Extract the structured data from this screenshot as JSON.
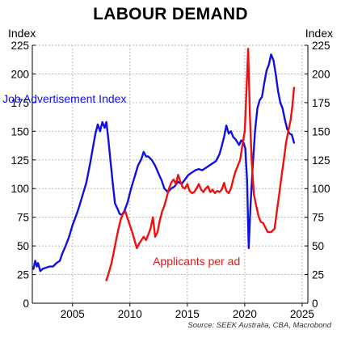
{
  "title": "LABOUR DEMAND",
  "y_unit_left": "Index",
  "y_unit_right": "Index",
  "source": "Source: SEEK Australia, CBA, Macrobond",
  "colors": {
    "job_index": "#1010e0",
    "applicants": "#ee1111",
    "grid": "#b8b8b8"
  },
  "chart_data": {
    "type": "line",
    "title": "LABOUR DEMAND",
    "ylabel": "Index",
    "ylim": [
      0,
      225
    ],
    "y_ticks": [
      0,
      25,
      50,
      75,
      100,
      125,
      150,
      175,
      200,
      225
    ],
    "xlim": [
      2001.5,
      2025.5
    ],
    "x_ticks": [
      2005,
      2010,
      2015,
      2020,
      2025
    ],
    "grid": true,
    "annotations": [
      {
        "text": "Job Advertisement Index",
        "series": "job_index"
      },
      {
        "text": "Applicants per ad",
        "series": "applicants"
      }
    ],
    "series": [
      {
        "id": "job_index",
        "name": "Job Advertisement Index",
        "color": "#1010e0",
        "points": [
          [
            2001.6,
            30
          ],
          [
            2001.75,
            37
          ],
          [
            2001.9,
            32
          ],
          [
            2002.0,
            35
          ],
          [
            2002.2,
            28
          ],
          [
            2002.4,
            30
          ],
          [
            2002.7,
            31
          ],
          [
            2003.0,
            32
          ],
          [
            2003.3,
            32
          ],
          [
            2003.6,
            35
          ],
          [
            2003.9,
            37
          ],
          [
            2004.1,
            43
          ],
          [
            2004.4,
            50
          ],
          [
            2004.7,
            58
          ],
          [
            2005.0,
            68
          ],
          [
            2005.3,
            76
          ],
          [
            2005.6,
            85
          ],
          [
            2005.9,
            95
          ],
          [
            2006.2,
            105
          ],
          [
            2006.5,
            120
          ],
          [
            2006.8,
            137
          ],
          [
            2007.0,
            148
          ],
          [
            2007.2,
            156
          ],
          [
            2007.4,
            150
          ],
          [
            2007.6,
            158
          ],
          [
            2007.8,
            153
          ],
          [
            2007.95,
            158
          ],
          [
            2008.1,
            145
          ],
          [
            2008.3,
            125
          ],
          [
            2008.5,
            105
          ],
          [
            2008.7,
            87
          ],
          [
            2008.9,
            83
          ],
          [
            2009.1,
            78
          ],
          [
            2009.3,
            77
          ],
          [
            2009.5,
            80
          ],
          [
            2009.8,
            88
          ],
          [
            2010.1,
            100
          ],
          [
            2010.4,
            110
          ],
          [
            2010.7,
            120
          ],
          [
            2011.0,
            126
          ],
          [
            2011.2,
            132
          ],
          [
            2011.4,
            128
          ],
          [
            2011.6,
            128
          ],
          [
            2011.9,
            125
          ],
          [
            2012.2,
            120
          ],
          [
            2012.5,
            113
          ],
          [
            2012.8,
            106
          ],
          [
            2013.0,
            100
          ],
          [
            2013.3,
            97
          ],
          [
            2013.6,
            100
          ],
          [
            2013.9,
            102
          ],
          [
            2014.2,
            106
          ],
          [
            2014.5,
            104
          ],
          [
            2014.8,
            108
          ],
          [
            2015.1,
            112
          ],
          [
            2015.4,
            114
          ],
          [
            2015.7,
            116
          ],
          [
            2016.0,
            117
          ],
          [
            2016.3,
            116
          ],
          [
            2016.6,
            118
          ],
          [
            2016.9,
            120
          ],
          [
            2017.2,
            122
          ],
          [
            2017.5,
            124
          ],
          [
            2017.8,
            130
          ],
          [
            2018.0,
            137
          ],
          [
            2018.2,
            145
          ],
          [
            2018.4,
            155
          ],
          [
            2018.6,
            148
          ],
          [
            2018.8,
            150
          ],
          [
            2019.0,
            145
          ],
          [
            2019.2,
            143
          ],
          [
            2019.5,
            138
          ],
          [
            2019.7,
            142
          ],
          [
            2019.9,
            140
          ],
          [
            2020.05,
            135
          ],
          [
            2020.2,
            108
          ],
          [
            2020.35,
            48
          ],
          [
            2020.5,
            85
          ],
          [
            2020.7,
            120
          ],
          [
            2020.9,
            150
          ],
          [
            2021.1,
            170
          ],
          [
            2021.3,
            177
          ],
          [
            2021.5,
            180
          ],
          [
            2021.7,
            192
          ],
          [
            2021.9,
            203
          ],
          [
            2022.1,
            208
          ],
          [
            2022.3,
            217
          ],
          [
            2022.5,
            212
          ],
          [
            2022.7,
            200
          ],
          [
            2022.9,
            185
          ],
          [
            2023.1,
            175
          ],
          [
            2023.3,
            170
          ],
          [
            2023.5,
            160
          ],
          [
            2023.7,
            152
          ],
          [
            2023.9,
            148
          ],
          [
            2024.1,
            147
          ],
          [
            2024.3,
            140
          ]
        ]
      },
      {
        "id": "applicants",
        "name": "Applicants per ad",
        "color": "#ee1111",
        "points": [
          [
            2007.95,
            20
          ],
          [
            2008.05,
            23
          ],
          [
            2008.2,
            28
          ],
          [
            2008.4,
            35
          ],
          [
            2008.6,
            45
          ],
          [
            2008.8,
            55
          ],
          [
            2009.0,
            65
          ],
          [
            2009.2,
            73
          ],
          [
            2009.4,
            78
          ],
          [
            2009.6,
            80
          ],
          [
            2009.8,
            74
          ],
          [
            2010.0,
            68
          ],
          [
            2010.2,
            62
          ],
          [
            2010.4,
            55
          ],
          [
            2010.6,
            48
          ],
          [
            2010.8,
            52
          ],
          [
            2011.0,
            55
          ],
          [
            2011.2,
            58
          ],
          [
            2011.4,
            55
          ],
          [
            2011.6,
            60
          ],
          [
            2011.8,
            65
          ],
          [
            2012.0,
            75
          ],
          [
            2012.2,
            58
          ],
          [
            2012.4,
            62
          ],
          [
            2012.6,
            72
          ],
          [
            2012.8,
            80
          ],
          [
            2013.0,
            85
          ],
          [
            2013.2,
            92
          ],
          [
            2013.4,
            100
          ],
          [
            2013.6,
            105
          ],
          [
            2013.8,
            108
          ],
          [
            2014.0,
            104
          ],
          [
            2014.2,
            112
          ],
          [
            2014.4,
            106
          ],
          [
            2014.6,
            101
          ],
          [
            2014.8,
            100
          ],
          [
            2015.0,
            104
          ],
          [
            2015.2,
            98
          ],
          [
            2015.4,
            96
          ],
          [
            2015.6,
            97
          ],
          [
            2015.8,
            100
          ],
          [
            2016.0,
            104
          ],
          [
            2016.2,
            99
          ],
          [
            2016.4,
            97
          ],
          [
            2016.6,
            100
          ],
          [
            2016.8,
            102
          ],
          [
            2017.0,
            97
          ],
          [
            2017.2,
            99
          ],
          [
            2017.4,
            96
          ],
          [
            2017.6,
            98
          ],
          [
            2017.8,
            97
          ],
          [
            2018.0,
            99
          ],
          [
            2018.2,
            105
          ],
          [
            2018.4,
            98
          ],
          [
            2018.6,
            96
          ],
          [
            2018.8,
            100
          ],
          [
            2019.0,
            108
          ],
          [
            2019.2,
            115
          ],
          [
            2019.4,
            120
          ],
          [
            2019.6,
            125
          ],
          [
            2019.8,
            138
          ],
          [
            2020.0,
            150
          ],
          [
            2020.15,
            185
          ],
          [
            2020.3,
            222
          ],
          [
            2020.45,
            165
          ],
          [
            2020.6,
            125
          ],
          [
            2020.8,
            95
          ],
          [
            2021.0,
            85
          ],
          [
            2021.2,
            76
          ],
          [
            2021.4,
            71
          ],
          [
            2021.6,
            70
          ],
          [
            2021.8,
            66
          ],
          [
            2022.0,
            62
          ],
          [
            2022.3,
            62
          ],
          [
            2022.6,
            65
          ],
          [
            2022.8,
            80
          ],
          [
            2023.0,
            95
          ],
          [
            2023.2,
            110
          ],
          [
            2023.4,
            125
          ],
          [
            2023.6,
            140
          ],
          [
            2023.8,
            150
          ],
          [
            2024.0,
            160
          ],
          [
            2024.15,
            172
          ],
          [
            2024.3,
            188
          ]
        ]
      }
    ]
  }
}
